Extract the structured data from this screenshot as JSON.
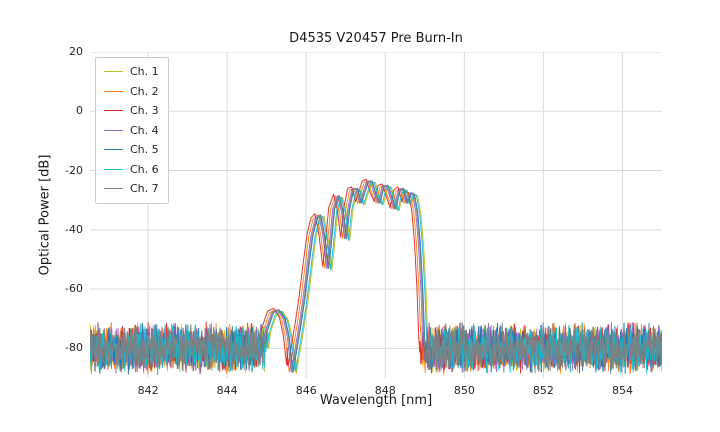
{
  "chart_data": {
    "type": "line",
    "title": "D4535 V20457 Pre Burn-In",
    "xlabel": "Wavelength [nm]",
    "ylabel": "Optical Power [dB]",
    "xlim": [
      840.53,
      855.0
    ],
    "ylim": [
      -90,
      20
    ],
    "xticks": [
      842,
      844,
      846,
      848,
      850,
      852,
      854
    ],
    "yticks": [
      20,
      0,
      -20,
      -40,
      -60,
      -80
    ],
    "grid": true,
    "grid_color": "#d9d9d9",
    "background_color": "#ffffff",
    "legend_position": "upper left",
    "sample_step_nm": 0.01,
    "noise_halfwidth_db": 9,
    "series": [
      {
        "name": "Ch. 1",
        "color": "#bcbd22",
        "offset_nm": 0.1,
        "gain_db": -0.5
      },
      {
        "name": "Ch. 2",
        "color": "#ff7f0e",
        "offset_nm": -0.08,
        "gain_db": 0
      },
      {
        "name": "Ch. 3",
        "color": "#d62728",
        "offset_nm": -0.13,
        "gain_db": 0.5
      },
      {
        "name": "Ch. 4",
        "color": "#9467bd",
        "offset_nm": -0.03,
        "gain_db": 0
      },
      {
        "name": "Ch. 5",
        "color": "#1f77b4",
        "offset_nm": 0.02,
        "gain_db": 0
      },
      {
        "name": "Ch. 6",
        "color": "#17becf",
        "offset_nm": 0.07,
        "gain_db": -0.5
      },
      {
        "name": "Ch. 7",
        "color": "#7f7f7f",
        "offset_nm": 0.0,
        "gain_db": 0
      }
    ],
    "envelope_nm_db": [
      [
        840.5,
        -120
      ],
      [
        844.7,
        -120
      ],
      [
        844.85,
        -90
      ],
      [
        845.0,
        -74
      ],
      [
        845.15,
        -68
      ],
      [
        845.3,
        -67
      ],
      [
        845.45,
        -70
      ],
      [
        845.55,
        -76
      ],
      [
        845.65,
        -88
      ],
      [
        845.75,
        -80
      ],
      [
        845.85,
        -72
      ],
      [
        845.95,
        -63
      ],
      [
        846.05,
        -52
      ],
      [
        846.15,
        -42
      ],
      [
        846.25,
        -36.5
      ],
      [
        846.35,
        -35
      ],
      [
        846.45,
        -42
      ],
      [
        846.55,
        -53
      ],
      [
        846.62,
        -44
      ],
      [
        846.7,
        -33
      ],
      [
        846.82,
        -28.5
      ],
      [
        846.92,
        -34
      ],
      [
        847.0,
        -43
      ],
      [
        847.08,
        -33
      ],
      [
        847.18,
        -26.5
      ],
      [
        847.28,
        -26
      ],
      [
        847.38,
        -31
      ],
      [
        847.45,
        -28
      ],
      [
        847.55,
        -24
      ],
      [
        847.65,
        -23.5
      ],
      [
        847.75,
        -28
      ],
      [
        847.85,
        -31
      ],
      [
        847.95,
        -25.5
      ],
      [
        848.05,
        -25
      ],
      [
        848.15,
        -29
      ],
      [
        848.25,
        -33
      ],
      [
        848.35,
        -27
      ],
      [
        848.45,
        -26
      ],
      [
        848.55,
        -31
      ],
      [
        848.65,
        -27.5
      ],
      [
        848.72,
        -28
      ],
      [
        848.8,
        -34
      ],
      [
        848.87,
        -45
      ],
      [
        848.93,
        -60
      ],
      [
        849.0,
        -85
      ],
      [
        849.1,
        -120
      ],
      [
        855.0,
        -120
      ]
    ],
    "noise_floor_nm_db": [
      [
        840.5,
        -80
      ],
      [
        845.1,
        -80
      ],
      [
        845.4,
        -83
      ],
      [
        845.6,
        -89
      ],
      [
        845.9,
        -91
      ],
      [
        846.1,
        -86
      ],
      [
        846.35,
        -80
      ],
      [
        855.0,
        -80
      ]
    ]
  }
}
